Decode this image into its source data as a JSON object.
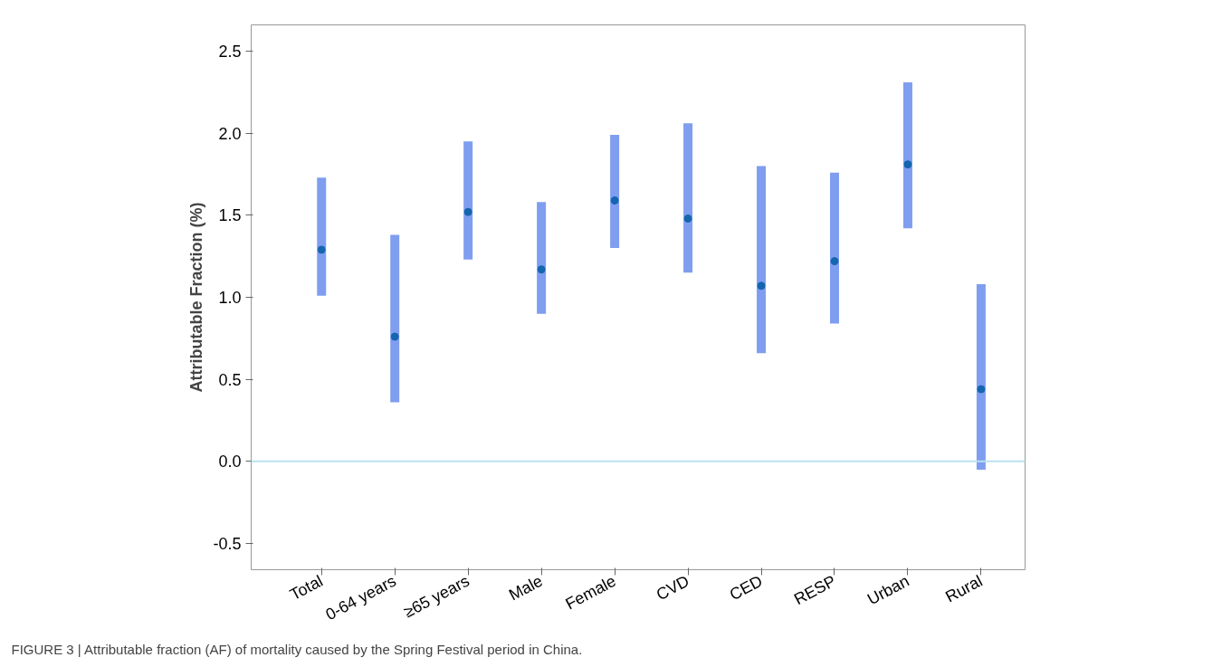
{
  "chart_data": {
    "type": "scatter",
    "ylabel": "Attributable Fraction (%)",
    "categories": [
      "Total",
      "0-64 years",
      "≥65 years",
      "Male",
      "Female",
      "CVD",
      "CED",
      "RESP",
      "Urban",
      "Rural"
    ],
    "values": [
      1.29,
      0.76,
      1.52,
      1.17,
      1.59,
      1.48,
      1.07,
      1.22,
      1.81,
      0.44
    ],
    "errors": [
      [
        1.01,
        1.73
      ],
      [
        0.36,
        1.38
      ],
      [
        1.23,
        1.95
      ],
      [
        0.9,
        1.58
      ],
      [
        1.3,
        1.99
      ],
      [
        1.15,
        2.06
      ],
      [
        0.66,
        1.8
      ],
      [
        0.84,
        1.76
      ],
      [
        1.42,
        2.31
      ],
      [
        -0.05,
        1.08
      ]
    ],
    "color": "#1565b0",
    "marker": "circle",
    "ylim": [
      -0.66,
      2.66
    ],
    "yticks": [
      {
        "value": -0.5,
        "label": "-0.5"
      },
      {
        "value": 0,
        "label": "0.0"
      },
      {
        "value": 0.5,
        "label": "0.5"
      },
      {
        "value": 1,
        "label": "1.0"
      },
      {
        "value": 1.5,
        "label": "1.5"
      },
      {
        "value": 2,
        "label": "2.0"
      },
      {
        "value": 2.5,
        "label": "2.5"
      }
    ],
    "grid": false,
    "ref_lines": [
      {
        "axis": "y",
        "value": 0,
        "color": "#b8e2ee"
      }
    ],
    "annotations": [
      "FIGURE 3 | Attributable fraction (AF) of mortality caused by the Spring Festival period in China."
    ]
  }
}
